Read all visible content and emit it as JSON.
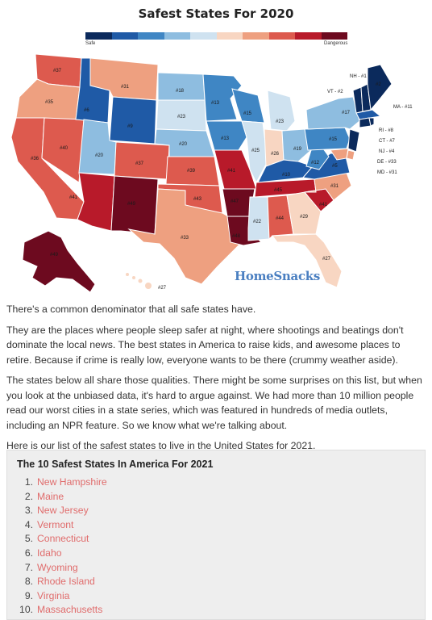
{
  "map": {
    "title": "Safest States For 2020",
    "legend_safe": "Safe",
    "legend_dangerous": "Dangerous",
    "legend_colors": [
      "#0b2a5c",
      "#1f5aa6",
      "#3f86c4",
      "#8ebde0",
      "#cfe2f0",
      "#f8d6c2",
      "#eea080",
      "#dd5a4e",
      "#b81a2a",
      "#6d0a1f"
    ],
    "brand": "HomeSnacks",
    "labels": {
      "WA": "#37",
      "OR": "#35",
      "CA": "#36",
      "NV": "#40",
      "ID": "#6",
      "MT": "#31",
      "WY": "#9",
      "UT": "#20",
      "AZ": "#41",
      "CO": "#37",
      "NM": "#49",
      "ND": "#18",
      "SD": "#23",
      "NE": "#20",
      "KS": "#39",
      "OK": "#43",
      "TX": "#33",
      "MN": "#13",
      "IA": "#13",
      "MO": "#41",
      "AR": "#47",
      "LA": "#48",
      "WI": "#15",
      "IL": "#25",
      "MI": "#23",
      "IN": "#26",
      "OH": "#19",
      "KY": "#10",
      "TN": "#45",
      "MS": "#22",
      "AL": "#44",
      "GA": "#29",
      "FL": "#27",
      "SC": "#41",
      "NC": "#31",
      "VA": "#5",
      "WV": "#12",
      "PA": "#15",
      "NY": "#17",
      "ME": "#2",
      "AK": "#49",
      "HI": "#27"
    },
    "northeast": [
      "NH - #1",
      "VT - #2",
      "MA - #11",
      "RI - #8",
      "CT - #7",
      "NJ - #4",
      "DE - #33",
      "MD - #31"
    ]
  },
  "article": {
    "p1": "There's a common denominator that all safe states have.",
    "p2": "They are the places where people sleep safer at night, where shootings and beatings don't dominate the local news. The best states in America to raise kids, and awesome places to retire. Because if crime is really low, everyone wants to be there (crummy weather aside).",
    "p3": "The states below all share those qualities. There might be some surprises on this list, but when you look at the unbiased data, it's hard to argue against. We had more than 10 million people read our worst cities in a state series, which was featured in hundreds of media outlets, including an NPR feature. So we know what we're talking about.",
    "p4": "Here is our list of the safest states to live in the United States for 2021."
  },
  "list": {
    "title": "The 10 Safest States In America For 2021",
    "items": [
      {
        "num": "1.",
        "name": "New Hampshire"
      },
      {
        "num": "2.",
        "name": "Maine"
      },
      {
        "num": "3.",
        "name": "New Jersey"
      },
      {
        "num": "4.",
        "name": "Vermont"
      },
      {
        "num": "5.",
        "name": "Connecticut"
      },
      {
        "num": "6.",
        "name": "Idaho"
      },
      {
        "num": "7.",
        "name": "Wyoming"
      },
      {
        "num": "8.",
        "name": "Rhode Island"
      },
      {
        "num": "9.",
        "name": "Virginia"
      },
      {
        "num": "10.",
        "name": "Massachusetts"
      }
    ]
  }
}
